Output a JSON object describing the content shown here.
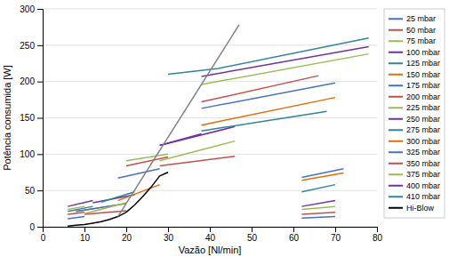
{
  "chart_data": {
    "type": "line",
    "xlabel": "Vazão [Nl/min]",
    "ylabel": "Potência consumida [W]",
    "xlim": [
      0,
      80
    ],
    "ylim": [
      0,
      300
    ],
    "xticks": [
      0,
      10,
      20,
      30,
      40,
      50,
      60,
      70,
      80
    ],
    "yticks": [
      0,
      50,
      100,
      150,
      200,
      250,
      300
    ],
    "grid": "y",
    "legend": "right",
    "series": [
      {
        "name": "25 mbar",
        "color": "#4472C4",
        "x": [
          6,
          10,
          null,
          62,
          70
        ],
        "values": [
          11,
          14,
          null,
          12,
          14
        ]
      },
      {
        "name": "50 mbar",
        "color": "#C0504D",
        "x": [
          6,
          10,
          null,
          62,
          70
        ],
        "values": [
          17,
          20,
          null,
          17,
          20
        ]
      },
      {
        "name": "75 mbar",
        "color": "#9BBB59",
        "x": [
          6,
          10,
          null,
          62,
          70
        ],
        "values": [
          24,
          28,
          null,
          24,
          28
        ]
      },
      {
        "name": "100 mbar",
        "color": "#7030A0",
        "x": [
          6,
          12,
          null,
          62,
          70
        ],
        "values": [
          28,
          36,
          null,
          28,
          36
        ]
      },
      {
        "name": "125 mbar",
        "color": "#31849B",
        "x": [
          6,
          12,
          null,
          62,
          70
        ],
        "values": [
          21,
          28,
          null,
          48,
          58
        ]
      },
      {
        "name": "150 mbar",
        "color": "#E36C09",
        "x": [
          8,
          20,
          null,
          62,
          72
        ],
        "values": [
          21,
          32,
          null,
          64,
          74
        ]
      },
      {
        "name": "175 mbar",
        "color": "#4472C4",
        "x": [
          8,
          20,
          null,
          62,
          72
        ],
        "values": [
          21,
          32,
          null,
          68,
          80
        ]
      },
      {
        "name": "200 mbar",
        "color": "#C0504D",
        "x": [
          10,
          20,
          null,
          28,
          46
        ],
        "values": [
          17,
          22,
          null,
          84,
          97
        ]
      },
      {
        "name": "225 mbar",
        "color": "#9BBB59",
        "x": [
          10,
          20,
          null,
          28,
          46
        ],
        "values": [
          18,
          33,
          null,
          91,
          118
        ]
      },
      {
        "name": "250 mbar",
        "color": "#7030A0",
        "x": [
          12,
          22,
          null,
          28,
          46
        ],
        "values": [
          33,
          44,
          null,
          112,
          138
        ]
      },
      {
        "name": "275 mbar",
        "color": "#31849B",
        "x": [
          14,
          22,
          null,
          38,
          68
        ],
        "values": [
          34,
          48,
          null,
          132,
          159
        ]
      },
      {
        "name": "300 mbar",
        "color": "#E36C09",
        "x": [
          18,
          28,
          null,
          38,
          70
        ],
        "values": [
          36,
          58,
          null,
          140,
          178
        ]
      },
      {
        "name": "325 mbar",
        "color": "#4472C4",
        "x": [
          18,
          28,
          null,
          38,
          70
        ],
        "values": [
          67,
          80,
          null,
          163,
          198
        ]
      },
      {
        "name": "350 mbar",
        "color": "#C0504D",
        "x": [
          20,
          30,
          null,
          38,
          66
        ],
        "values": [
          84,
          96,
          null,
          172,
          208
        ]
      },
      {
        "name": "375 mbar",
        "color": "#9BBB59",
        "x": [
          20,
          30,
          null,
          38,
          78
        ],
        "values": [
          91,
          100,
          null,
          196,
          238
        ]
      },
      {
        "name": "400 mbar",
        "color": "#7030A0",
        "x": [
          28,
          38,
          null,
          38,
          78
        ],
        "values": [
          112,
          128,
          null,
          207,
          248
        ]
      },
      {
        "name": "410 mbar",
        "color": "#31849B",
        "x": [
          30,
          42,
          null,
          42,
          78
        ],
        "values": [
          210,
          218,
          null,
          218,
          260
        ]
      },
      {
        "name": "Hi-Blow",
        "color": "#000000",
        "x": [
          6,
          8,
          10,
          12,
          14,
          16,
          18,
          20,
          22,
          24,
          26,
          28,
          30
        ],
        "values": [
          1,
          2,
          3,
          5,
          7,
          10,
          14,
          20,
          30,
          42,
          55,
          70,
          75
        ]
      },
      {
        "color": "#808080",
        "x": [
          18,
          47
        ],
        "values": [
          14,
          278
        ]
      }
    ]
  }
}
